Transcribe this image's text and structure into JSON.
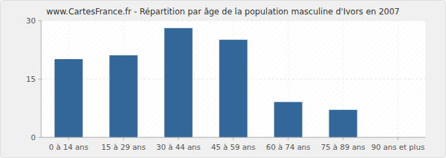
{
  "chart_data": {
    "type": "bar",
    "title": "www.CartesFrance.fr - Répartition par âge de la population masculine d'Ivors en 2007",
    "categories": [
      "0 à 14 ans",
      "15 à 29 ans",
      "30 à 44 ans",
      "45 à 59 ans",
      "60 à 74 ans",
      "75 à 89 ans",
      "90 ans et plus"
    ],
    "values": [
      20,
      21,
      28,
      25,
      9,
      7,
      0
    ],
    "color": "#336699",
    "ylim": [
      0,
      30
    ],
    "yticks": [
      0,
      15,
      30
    ],
    "grid": true
  }
}
